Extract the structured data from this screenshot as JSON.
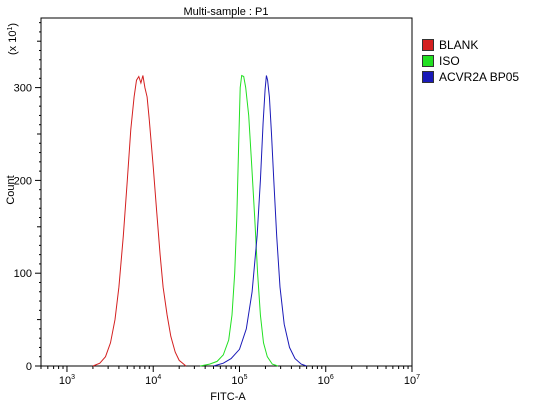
{
  "chart_data": {
    "type": "line",
    "title": "Multi-sample : P1",
    "xlabel": "FITC-A",
    "ylabel": "Count",
    "y_multiplier_label": "(x 10",
    "y_multiplier_exp": "1",
    "x_scale": "log",
    "xlim": [
      500,
      10000000
    ],
    "ylim": [
      0,
      375
    ],
    "x_ticks": [
      {
        "value": 1000,
        "base": "10",
        "exp": "3"
      },
      {
        "value": 10000,
        "base": "10",
        "exp": "4"
      },
      {
        "value": 100000,
        "base": "10",
        "exp": "5"
      },
      {
        "value": 1000000,
        "base": "10",
        "exp": "6"
      },
      {
        "value": 10000000,
        "base": "10",
        "exp": "7"
      }
    ],
    "y_ticks": [
      0,
      100,
      200,
      300
    ],
    "legend_position": "right",
    "series": [
      {
        "name": "BLANK",
        "color": "#d42020",
        "points": [
          [
            2000,
            0
          ],
          [
            2400,
            3
          ],
          [
            2800,
            10
          ],
          [
            3200,
            25
          ],
          [
            3600,
            50
          ],
          [
            4000,
            85
          ],
          [
            4500,
            140
          ],
          [
            5000,
            200
          ],
          [
            5500,
            255
          ],
          [
            6000,
            290
          ],
          [
            6400,
            308
          ],
          [
            6800,
            312
          ],
          [
            7200,
            305
          ],
          [
            7600,
            313
          ],
          [
            8000,
            300
          ],
          [
            8500,
            290
          ],
          [
            9000,
            265
          ],
          [
            10000,
            215
          ],
          [
            11000,
            165
          ],
          [
            12000,
            120
          ],
          [
            13000,
            85
          ],
          [
            14500,
            55
          ],
          [
            16000,
            32
          ],
          [
            18000,
            15
          ],
          [
            20000,
            6
          ],
          [
            24000,
            0
          ]
        ]
      },
      {
        "name": "ISO",
        "color": "#22e022",
        "points": [
          [
            35000,
            0
          ],
          [
            45000,
            2
          ],
          [
            55000,
            5
          ],
          [
            65000,
            12
          ],
          [
            75000,
            28
          ],
          [
            82000,
            55
          ],
          [
            88000,
            100
          ],
          [
            93000,
            160
          ],
          [
            98000,
            240
          ],
          [
            102000,
            300
          ],
          [
            106000,
            313
          ],
          [
            112000,
            312
          ],
          [
            118000,
            300
          ],
          [
            128000,
            270
          ],
          [
            138000,
            220
          ],
          [
            150000,
            160
          ],
          [
            162000,
            100
          ],
          [
            175000,
            55
          ],
          [
            190000,
            25
          ],
          [
            210000,
            10
          ],
          [
            240000,
            2
          ],
          [
            280000,
            0
          ]
        ]
      },
      {
        "name": "ACVR2A BP05",
        "color": "#1a1ab8",
        "points": [
          [
            50000,
            0
          ],
          [
            65000,
            3
          ],
          [
            80000,
            8
          ],
          [
            100000,
            18
          ],
          [
            120000,
            40
          ],
          [
            140000,
            80
          ],
          [
            160000,
            140
          ],
          [
            175000,
            200
          ],
          [
            188000,
            262
          ],
          [
            198000,
            298
          ],
          [
            205000,
            313
          ],
          [
            212000,
            308
          ],
          [
            222000,
            290
          ],
          [
            235000,
            250
          ],
          [
            250000,
            200
          ],
          [
            270000,
            140
          ],
          [
            295000,
            85
          ],
          [
            330000,
            45
          ],
          [
            380000,
            20
          ],
          [
            440000,
            8
          ],
          [
            520000,
            2
          ],
          [
            600000,
            0
          ]
        ]
      }
    ]
  }
}
